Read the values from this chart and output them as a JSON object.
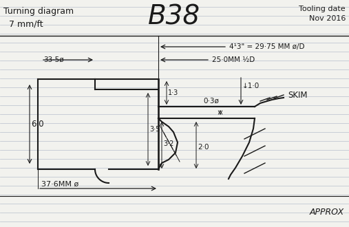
{
  "title_left": "Turning diagram",
  "subtitle_left": "  7 mm/ft",
  "title_center": "B38",
  "tooling_date_1": "Tooling date",
  "tooling_date_2": "Nov 2016",
  "dim_413": "4¹3\" = 29·75 MM ø/D",
  "dim_250": "25·0MM ½D",
  "dim_335": "33·5ø",
  "dim_376": "37·6MM ø",
  "dim_60": "6·0",
  "dim_13": "1·3",
  "dim_35": "3·5",
  "dim_32": "3·2",
  "dim_20": "2·0",
  "dim_10": "↓1·0",
  "dim_03": "0·3ø",
  "label_skim": "SKIM",
  "label_approx": "APPROX",
  "bg_color": "#f2f2ee",
  "line_color": "#1a1a1a",
  "ruled_line_color": "#b8bfcc"
}
